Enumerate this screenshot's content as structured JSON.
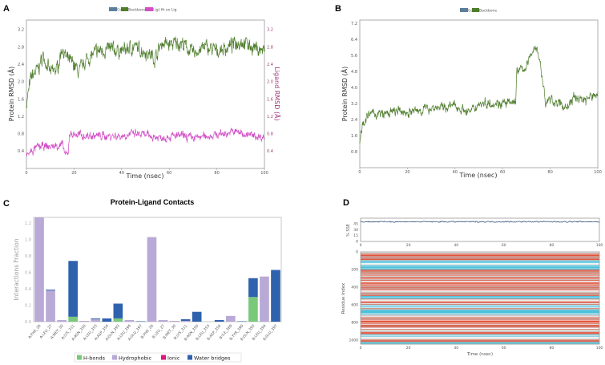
{
  "colors": {
    "backbone": "#4e7d2c",
    "ca": "#5b7f9a",
    "ligand": "#d24fc6",
    "hbond": "#79c97a",
    "hydrophobic": "#b8a9d6",
    "ionic": "#e0147d",
    "water": "#2f62ad",
    "helix": "#e5533a",
    "strand": "#4cc0da",
    "coil": "#c9c9c9"
  },
  "chart_data": [
    {
      "panel": "A",
      "type": "line",
      "legend": [
        "Cα",
        "Backbone",
        "Lig) fit on Lig"
      ],
      "xlabel": "Time (nsec)",
      "ylabel": "Protein RMSD (Å)",
      "ylabel_right": "Ligand RMSD (Å)",
      "xlim": [
        0,
        100
      ],
      "ylim": [
        0,
        3.42
      ],
      "xticks": [
        "0",
        "20",
        "40",
        "60",
        "80",
        "100"
      ],
      "yticks": [
        "0.4",
        "0.8",
        "1.2",
        "1.6",
        "2.0",
        "2.4",
        "2.8",
        "3.2"
      ],
      "series": [
        {
          "name": "Backbone",
          "x": [
            0,
            2,
            5,
            7,
            10,
            13,
            15,
            17,
            20,
            22,
            25,
            30,
            35,
            40,
            45,
            50,
            54,
            57,
            60,
            65,
            70,
            75,
            80,
            85,
            90,
            95,
            100
          ],
          "y": [
            1.5,
            2.1,
            2.3,
            2.6,
            2.2,
            2.3,
            2.8,
            2.5,
            2.4,
            2.2,
            2.5,
            2.7,
            2.75,
            2.7,
            2.8,
            2.7,
            2.55,
            2.9,
            2.85,
            2.9,
            2.65,
            2.8,
            2.7,
            2.8,
            2.95,
            2.8,
            2.7
          ]
        },
        {
          "name": "Lig fit on Lig",
          "x": [
            0,
            5,
            10,
            15,
            16.5,
            17.5,
            18,
            25,
            40,
            45,
            55,
            65,
            70,
            80,
            88,
            95,
            100
          ],
          "y": [
            0.3,
            0.5,
            0.5,
            0.55,
            0.3,
            0.3,
            0.8,
            0.75,
            0.75,
            0.8,
            0.72,
            0.75,
            0.7,
            0.78,
            0.85,
            0.75,
            0.72
          ]
        }
      ]
    },
    {
      "panel": "B",
      "type": "line",
      "legend": [
        "Cα",
        "Backbone"
      ],
      "xlabel": "Time (nsec)",
      "ylabel": "Protein RMSD (Å)",
      "xlim": [
        0,
        100
      ],
      "ylim": [
        0,
        7.36
      ],
      "xticks": [
        "0",
        "20",
        "40",
        "60",
        "80",
        "100"
      ],
      "yticks": [
        "0.8",
        "1.6",
        "2.4",
        "3.2",
        "4.0",
        "4.8",
        "5.6",
        "6.4",
        "7.2"
      ],
      "series": [
        {
          "name": "Backbone",
          "x": [
            0,
            1,
            3,
            5,
            10,
            15,
            20,
            25,
            30,
            35,
            40,
            45,
            47,
            50,
            55,
            60,
            64,
            65.5,
            66,
            70,
            73,
            75,
            77,
            78,
            80,
            85,
            87,
            90,
            95,
            100
          ],
          "y": [
            1.2,
            2.2,
            2.5,
            2.7,
            2.65,
            2.8,
            2.75,
            2.85,
            3.0,
            3.0,
            3.1,
            2.8,
            2.8,
            3.2,
            3.25,
            3.2,
            3.2,
            3.4,
            4.8,
            5.0,
            6.0,
            5.8,
            4.2,
            3.2,
            3.4,
            3.1,
            3.0,
            3.5,
            3.4,
            3.7
          ]
        }
      ]
    },
    {
      "panel": "C",
      "type": "bar",
      "title": "Protein-Ligand Contacts",
      "ylabel": "Interactions Fraction",
      "ylim": [
        0,
        1.27
      ],
      "yticks": [
        "0.0",
        "0.2",
        "0.4",
        "0.6",
        "0.8",
        "1.0",
        "1.2"
      ],
      "legend": [
        "H-bonds",
        "Hydrophobic",
        "Ionic",
        "Water bridges"
      ],
      "categories": [
        "A:PHE_26",
        "A:LEU_27",
        "A:MET_30",
        "A:LYS_311",
        "A:ASN_350",
        "A:LEU_353",
        "A:ASP_354",
        "A:GLN_393",
        "A:LEU_394",
        "A:GLU_397",
        "B:PHE_26",
        "B:LEU_27",
        "B:MET_30",
        "B:LYS_311",
        "B:ASN_350",
        "B:LEU_353",
        "B:ASP_354",
        "B:ILE_389",
        "B:TYR_390",
        "B:GLN_393",
        "B:LEU_394",
        "B:GLU_397"
      ],
      "series": [
        {
          "name": "H-bonds",
          "values": [
            0,
            0,
            0,
            0.06,
            0,
            0,
            0,
            0.04,
            0,
            0,
            0,
            0,
            0,
            0,
            0,
            0,
            0,
            0,
            0,
            0.3,
            0,
            0
          ]
        },
        {
          "name": "Hydrophobic",
          "values": [
            1.27,
            0.38,
            0.02,
            0,
            0.01,
            0.03,
            0,
            0,
            0.02,
            0,
            1.03,
            0.02,
            0.01,
            0.01,
            0,
            0,
            0,
            0.07,
            0,
            0,
            0.55,
            0
          ]
        },
        {
          "name": "Ionic",
          "values": [
            0,
            0,
            0,
            0,
            0,
            0,
            0,
            0,
            0,
            0,
            0,
            0,
            0,
            0,
            0,
            0,
            0,
            0,
            0,
            0,
            0,
            0
          ]
        },
        {
          "name": "Water bridges",
          "values": [
            0,
            0.01,
            0,
            0.68,
            0,
            0.01,
            0.04,
            0.18,
            0,
            0.005,
            0,
            0,
            0,
            0.02,
            0.12,
            0,
            0.02,
            0,
            0.005,
            0.23,
            0,
            0.63
          ]
        }
      ]
    },
    {
      "panel": "D",
      "type": "heatmap",
      "top": {
        "ylabel": "% SSE",
        "ylim": [
          0,
          59
        ],
        "yticks": [
          "0",
          "15",
          "30",
          "45"
        ],
        "mean": 50,
        "xticks": [
          "0",
          "20",
          "40",
          "60",
          "80",
          "100"
        ]
      },
      "xlabel": "Time (nsec)",
      "ylabel": "Residue Index",
      "ylim": [
        0,
        1045
      ],
      "xticks": [
        "0",
        "20",
        "40",
        "60",
        "80",
        "100"
      ],
      "yticks": [
        "0",
        "200",
        "400",
        "600",
        "800",
        "1000"
      ],
      "strand_regions": [
        [
          95,
          130
        ],
        [
          150,
          200
        ],
        [
          500,
          530
        ],
        [
          600,
          640
        ],
        [
          650,
          700
        ],
        [
          700,
          715
        ],
        [
          935,
          960
        ],
        [
          1020,
          1045
        ]
      ],
      "coil_regions": [
        [
          0,
          20
        ],
        [
          130,
          150
        ],
        [
          330,
          345
        ],
        [
          440,
          460
        ],
        [
          540,
          560
        ],
        [
          720,
          740
        ],
        [
          860,
          875
        ],
        [
          960,
          990
        ]
      ]
    }
  ]
}
